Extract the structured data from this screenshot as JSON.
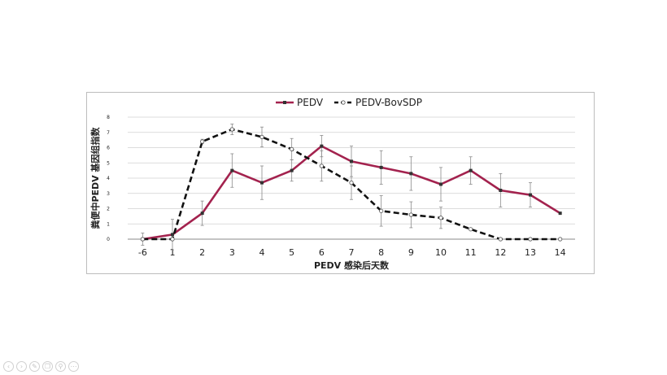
{
  "chart_data": {
    "type": "line",
    "categories": [
      "-6",
      "1",
      "2",
      "3",
      "4",
      "5",
      "6",
      "7",
      "8",
      "9",
      "10",
      "11",
      "12",
      "13",
      "14"
    ],
    "xlabel": "PEDV 感染后天数",
    "ylabel": "粪便中PEDV 基因组指数",
    "ylim": [
      0,
      8
    ],
    "yticks": [
      "0",
      "1",
      "2",
      "3",
      "4",
      "5",
      "6",
      "7",
      "8"
    ],
    "grid": true,
    "legend_position": "top",
    "series": [
      {
        "name": "PEDV",
        "color": "#a3224e",
        "style": "solid",
        "marker": "filled-square",
        "values": [
          0.0,
          0.3,
          1.7,
          4.5,
          3.7,
          4.5,
          6.1,
          5.1,
          4.7,
          4.3,
          3.6,
          4.5,
          3.2,
          2.9,
          1.7
        ],
        "errors": [
          0.4,
          1.0,
          0.8,
          1.1,
          1.1,
          0.7,
          0.7,
          1.0,
          1.1,
          1.1,
          1.1,
          0.9,
          1.1,
          0.8,
          0.0
        ]
      },
      {
        "name": "PEDV-BovSDP",
        "color": "#111111",
        "style": "dashed",
        "marker": "open-circle",
        "values": [
          0.0,
          0.0,
          6.4,
          7.2,
          6.7,
          5.9,
          4.8,
          3.7,
          1.85,
          1.6,
          1.4,
          0.65,
          0.0,
          0.0,
          0.0
        ],
        "errors": [
          0.0,
          0.0,
          0.15,
          0.35,
          0.65,
          0.7,
          1.0,
          1.1,
          1.0,
          0.85,
          0.7,
          0.0,
          0.0,
          0.0,
          0.0
        ]
      }
    ]
  },
  "controls": {
    "prev_icon": "prev-icon",
    "next_icon": "next-icon",
    "pen_icon": "pen-icon",
    "copy_icon": "copy-icon",
    "zoom_icon": "zoom-icon",
    "more_icon": "more-icon"
  }
}
